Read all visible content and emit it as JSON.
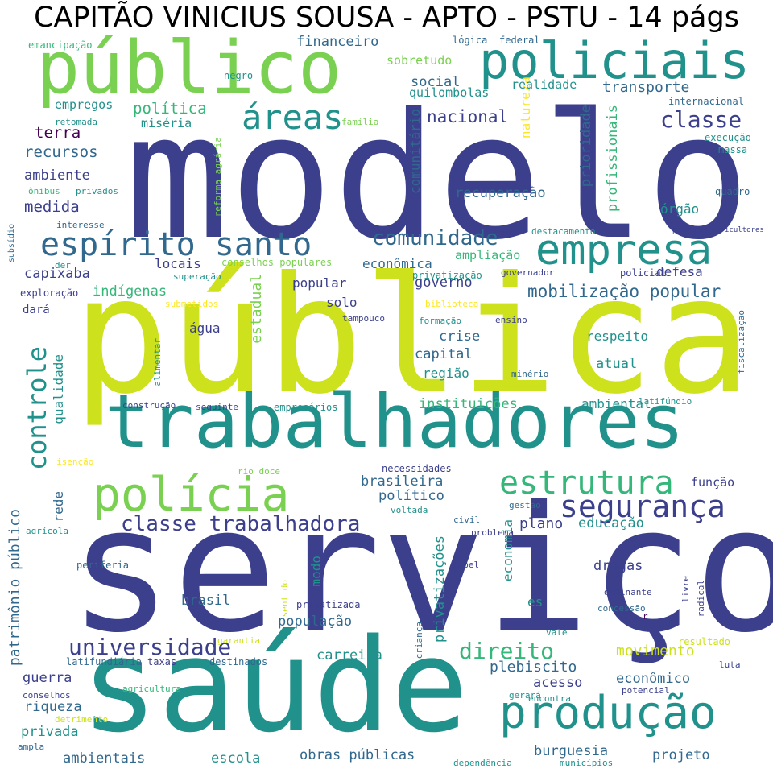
{
  "title": "CAPITÃO VINICIUS SOUSA - APTO - PSTU - 14 págs",
  "palette": {
    "dark_purple": "#440154",
    "indigo": "#3b3f8c",
    "blue": "#31688e",
    "teal": "#21918c",
    "green": "#35b779",
    "light_green": "#7ad151",
    "yellow": "#cde11d",
    "bright_yellow": "#fde725"
  },
  "words": [
    "modelo",
    "pública",
    "serviço",
    "trabalhadores",
    "saúde",
    "público",
    "policiais",
    "polícia",
    "empresa",
    "espírito santo",
    "produção",
    "áreas",
    "segurança",
    "estrutura",
    "classe trabalhadora",
    "controle",
    "classe",
    "universidade",
    "comunidade",
    "direito",
    "mobilização popular",
    "recuperação",
    "natureza",
    "prioridade",
    "profissionais",
    "comunitário",
    "nacional",
    "financeiro",
    "política",
    "sobretudo",
    "social",
    "realidade",
    "transporte",
    "quilombolas",
    "empregos",
    "miséria",
    "terra",
    "recursos",
    "ambiente",
    "medida",
    "capixaba",
    "indígenas",
    "locais",
    "econômica",
    "ampliação",
    "defesa",
    "órgão",
    "governo",
    "popular",
    "solo",
    "água",
    "crise",
    "capital",
    "região",
    "respeito",
    "atual",
    "estadual",
    "qualidade",
    "instituições",
    "ambiental",
    "rede",
    "brasileira",
    "político",
    "função",
    "plano",
    "educação",
    "drogas",
    "economia",
    "privatizações",
    "modo",
    "brasil",
    "es",
    "população",
    "movimento",
    "carreira",
    "plebiscito",
    "econômico",
    "acesso",
    "guerra",
    "riqueza",
    "privada",
    "ambientais",
    "escola",
    "obras públicas",
    "burguesia",
    "projeto",
    "patrimônio público",
    "emancipação",
    "negro",
    "lógica",
    "federal",
    "retomada",
    "família",
    "internacional",
    "execução",
    "massa",
    "ônibus",
    "privados",
    "reforma agrária",
    "quadro",
    "interesse",
    "subsídio",
    "pequenos agricultores",
    "destacamento",
    "der",
    "conselhos populares",
    "superação",
    "privatização",
    "governador",
    "policial",
    "exploração",
    "submetidos",
    "biblioteca",
    "dará",
    "tampouco",
    "formação",
    "ensino",
    "alimentar",
    "minério",
    "fiscalização",
    "construção",
    "seguinte",
    "empresários",
    "latifúndio",
    "isenção",
    "rio doce",
    "necessidades",
    "gestão",
    "voltada",
    "civil",
    "agrícola",
    "problema",
    "periferia",
    "papel",
    "dominante",
    "livre",
    "radical",
    "sentido",
    "privatizada",
    "concessão",
    "r",
    "criança",
    "vale",
    "garantia",
    "resultado",
    "latifundiária",
    "taxas",
    "destinados",
    "luta",
    "conselhos",
    "agricultura",
    "potencial",
    "gerará",
    "encontra",
    "detrimento",
    "ampla",
    "dependência",
    "municípios"
  ]
}
